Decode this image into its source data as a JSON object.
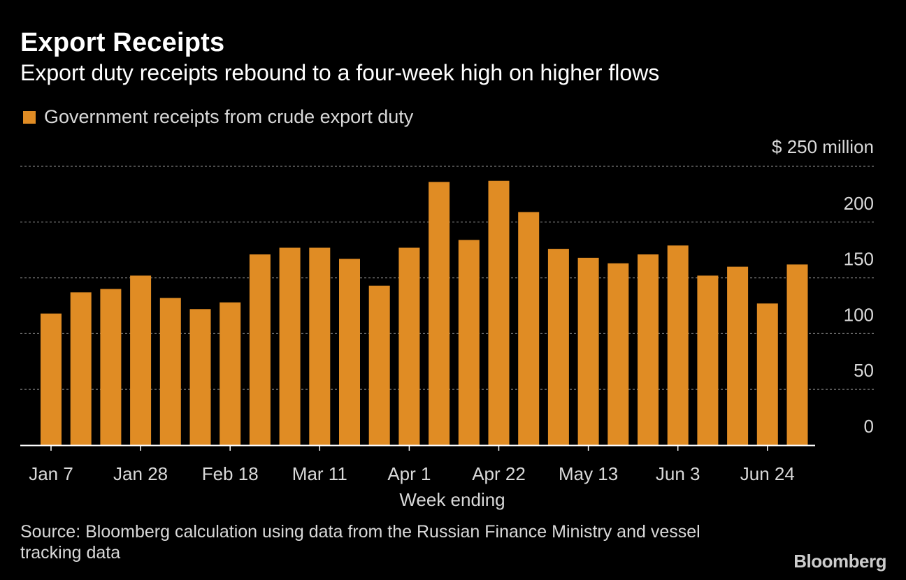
{
  "header": {
    "title": "Export Receipts",
    "subtitle": "Export duty receipts rebound to a four-week high on higher flows"
  },
  "footer": {
    "source": "Source: Bloomberg calculation using data from the Russian Finance Ministry and vessel tracking data",
    "brand": "Bloomberg"
  },
  "colors": {
    "bar": "#e08c24",
    "background": "#000000",
    "grid": "#7a7a7a",
    "text": "#d9d9d9"
  },
  "chart_data": {
    "type": "bar",
    "title": "Export Receipts",
    "subtitle": "Export duty receipts rebound to a four-week high on higher flows",
    "xlabel": "Week ending",
    "ylabel": "",
    "y_unit_label": "$ 250 million",
    "ylim": [
      0,
      250
    ],
    "y_ticks": [
      0,
      50,
      100,
      150,
      200,
      250
    ],
    "y_tick_labels": [
      "0",
      "50",
      "100",
      "150",
      "200",
      ""
    ],
    "grid": true,
    "y_axis_side": "right",
    "legend_position": "top-left",
    "x_tick_labels": [
      {
        "index": 0,
        "label": "Jan 7"
      },
      {
        "index": 3,
        "label": "Jan 28"
      },
      {
        "index": 6,
        "label": "Feb 18"
      },
      {
        "index": 9,
        "label": "Mar 11"
      },
      {
        "index": 12,
        "label": "Apr 1"
      },
      {
        "index": 15,
        "label": "Apr 22"
      },
      {
        "index": 18,
        "label": "May 13"
      },
      {
        "index": 21,
        "label": "Jun 3"
      },
      {
        "index": 24,
        "label": "Jun 24"
      }
    ],
    "series": [
      {
        "name": "Government receipts from crude export duty",
        "values": [
          118,
          137,
          140,
          152,
          132,
          122,
          128,
          171,
          177,
          177,
          167,
          143,
          177,
          236,
          184,
          237,
          209,
          176,
          168,
          163,
          171,
          179,
          152,
          160,
          127,
          162
        ]
      }
    ]
  }
}
